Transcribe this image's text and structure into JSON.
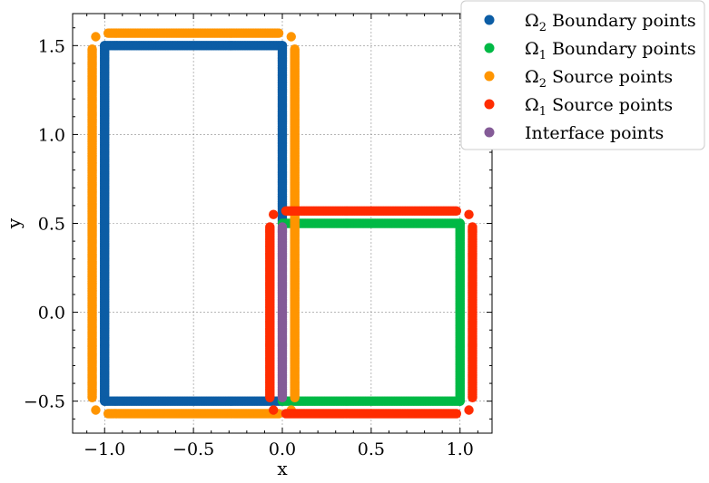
{
  "chart_data": {
    "type": "scatter",
    "xlabel": "x",
    "ylabel": "y",
    "xlim": [
      -1.18,
      1.18
    ],
    "ylim": [
      -0.68,
      1.68
    ],
    "x_ticks": [
      -1.0,
      -0.5,
      0.0,
      0.5,
      1.0
    ],
    "x_tick_labels": [
      "−1.0",
      "−0.5",
      "0.0",
      "0.5",
      "1.0"
    ],
    "y_ticks": [
      -0.5,
      0.0,
      0.5,
      1.0,
      1.5
    ],
    "y_tick_labels": [
      "−0.5",
      "0.0",
      "0.5",
      "1.0",
      "1.5"
    ],
    "grid": true,
    "legend_position": "top-right, outside axes",
    "series": [
      {
        "name": "Ω₂ Boundary points",
        "name_main": "Ω",
        "name_sub": "2",
        "name_rest": " Boundary points",
        "color": "#0C5DA5",
        "segments": [
          {
            "from": [
              -1.0,
              -0.5
            ],
            "to": [
              -1.0,
              1.5
            ]
          },
          {
            "from": [
              -1.0,
              1.5
            ],
            "to": [
              0.0,
              1.5
            ]
          },
          {
            "from": [
              0.0,
              1.5
            ],
            "to": [
              0.0,
              0.5
            ]
          },
          {
            "from": [
              -1.0,
              -0.5
            ],
            "to": [
              0.0,
              -0.5
            ]
          }
        ]
      },
      {
        "name": "Ω₁ Boundary points",
        "name_main": "Ω",
        "name_sub": "1",
        "name_rest": " Boundary points",
        "color": "#00B945",
        "segments": [
          {
            "from": [
              0.0,
              0.5
            ],
            "to": [
              1.0,
              0.5
            ]
          },
          {
            "from": [
              1.0,
              0.5
            ],
            "to": [
              1.0,
              -0.5
            ]
          },
          {
            "from": [
              0.0,
              -0.5
            ],
            "to": [
              1.0,
              -0.5
            ]
          }
        ]
      },
      {
        "name": "Ω₂ Source points",
        "name_main": "Ω",
        "name_sub": "2",
        "name_rest": " Source points",
        "color": "#FF9500",
        "segments": [
          {
            "from": [
              -1.07,
              -0.48
            ],
            "to": [
              -1.07,
              1.48
            ]
          },
          {
            "from": [
              -0.98,
              1.57
            ],
            "to": [
              -0.02,
              1.57
            ]
          },
          {
            "from": [
              0.07,
              1.48
            ],
            "to": [
              0.07,
              -0.48
            ]
          },
          {
            "from": [
              -0.98,
              -0.57
            ],
            "to": [
              -0.02,
              -0.57
            ]
          }
        ],
        "points": [
          [
            -1.05,
            1.55
          ],
          [
            0.05,
            1.55
          ],
          [
            -1.05,
            -0.55
          ],
          [
            0.05,
            -0.55
          ]
        ]
      },
      {
        "name": "Ω₁ Source points",
        "name_main": "Ω",
        "name_sub": "1",
        "name_rest": " Source points",
        "color": "#FF2C00",
        "segments": [
          {
            "from": [
              -0.07,
              0.48
            ],
            "to": [
              -0.07,
              -0.48
            ]
          },
          {
            "from": [
              0.02,
              0.57
            ],
            "to": [
              0.98,
              0.57
            ]
          },
          {
            "from": [
              1.07,
              0.48
            ],
            "to": [
              1.07,
              -0.48
            ]
          },
          {
            "from": [
              0.02,
              -0.57
            ],
            "to": [
              0.98,
              -0.57
            ]
          }
        ],
        "points": [
          [
            -0.05,
            0.55
          ],
          [
            1.05,
            0.55
          ],
          [
            -0.05,
            -0.55
          ],
          [
            1.05,
            -0.55
          ]
        ]
      },
      {
        "name": "Interface points",
        "name_main": "Interface points",
        "name_sub": "",
        "name_rest": "",
        "color": "#845B97",
        "segments": [
          {
            "from": [
              0.0,
              -0.48
            ],
            "to": [
              0.0,
              0.48
            ]
          }
        ]
      }
    ]
  }
}
